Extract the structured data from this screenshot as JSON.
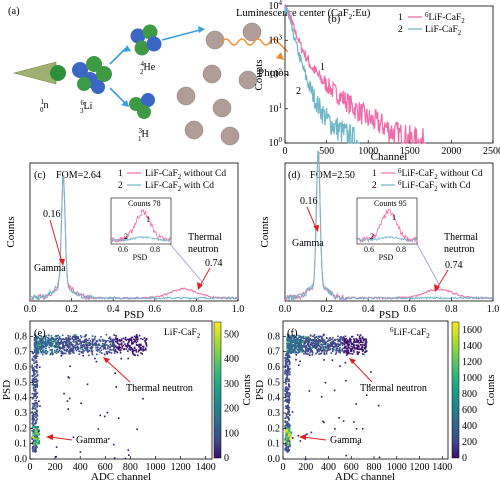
{
  "panels": {
    "a": {
      "label": "(a)",
      "luminescence_center": "Luminescence center (CaF",
      "luminescence_center_sub": "2",
      "luminescence_center_end": ":Eu)",
      "neutron_mass": "1",
      "neutron_charge": "0",
      "neutron_symbol": "n",
      "li_mass": "6",
      "li_charge": "3",
      "li_symbol": "Li",
      "he_mass": "4",
      "he_charge": "2",
      "he_symbol": "He",
      "h_mass": "3",
      "h_charge": "1",
      "h_symbol": "H",
      "photon": "Photon"
    },
    "b": {
      "label": "(b)",
      "ylabel": "Counts",
      "xlabel": "Channel",
      "xticks": [
        "0",
        "500",
        "1000",
        "1500",
        "2000",
        "2500"
      ],
      "legend": [
        {
          "num": "1",
          "text": "LiF-CaF",
          "pre": "6",
          "sub": "2",
          "color": "#f06ba8"
        },
        {
          "num": "2",
          "text": "LiF-CaF",
          "pre": "",
          "sub": "2",
          "color": "#6fb6c9"
        }
      ],
      "curve_labels": [
        "1",
        "2"
      ]
    },
    "c": {
      "label": "(c)",
      "fom": "FOM=2.64",
      "ylabel": "Counts",
      "xlabel": "PSD",
      "xticks": [
        "0.0",
        "0.2",
        "0.4",
        "0.6",
        "0.8",
        "1.0"
      ],
      "legend": [
        {
          "num": "1",
          "text": "LiF-CaF",
          "sub": "2",
          "tail": " without Cd",
          "color": "#f06ba8"
        },
        {
          "num": "2",
          "text": "LiF-CaF",
          "sub": "2",
          "tail": " with Cd",
          "color": "#6fb6c9"
        }
      ],
      "peak_gamma": "0.16",
      "gamma": "Gamma",
      "thermal_1": "Thermal",
      "thermal_2": "neutron",
      "peak_thermal": "0.74",
      "inset": {
        "title": "Counts 78",
        "xlabel": "PSD",
        "xticks": [
          "0.6",
          "0.8"
        ],
        "labels": [
          "1",
          "2"
        ]
      }
    },
    "d": {
      "label": "(d)",
      "fom": "FOM=2.50",
      "ylabel": "Counts",
      "xlabel": "PSD",
      "xticks": [
        "0.0",
        "0.2",
        "0.4",
        "0.6",
        "0.8",
        "1.0"
      ],
      "legend": [
        {
          "num": "1",
          "text": "LiF-CaF",
          "pre": "6",
          "sub": "2",
          "tail": " without Cd",
          "color": "#f06ba8"
        },
        {
          "num": "2",
          "text": "LiF-CaF",
          "pre": "6",
          "sub": "2",
          "tail": " with Cd",
          "color": "#6fb6c9"
        }
      ],
      "peak_gamma": "0.16",
      "gamma": "Gamma",
      "thermal_1": "Thermal",
      "thermal_2": "neutron",
      "peak_thermal": "0.74",
      "inset": {
        "title": "Counts 95",
        "xlabel": "PSD",
        "xticks": [
          "0.6",
          "0.8"
        ],
        "labels": [
          "1",
          "2"
        ]
      }
    },
    "e": {
      "label": "(e)",
      "material": "LiF-CaF",
      "material_sub": "2",
      "ylabel": "PSD",
      "xlabel": "ADC channel",
      "xticks": [
        "0",
        "200",
        "400",
        "600",
        "800",
        "1000",
        "1200",
        "1400"
      ],
      "yticks": [
        "0.0",
        "0.1",
        "0.2",
        "0.3",
        "0.4",
        "0.5",
        "0.6",
        "0.7",
        "0.8"
      ],
      "colorbar_label": "Counts",
      "colorbar_ticks": [
        "0",
        "100",
        "200",
        "300",
        "400",
        "500"
      ],
      "thermal": "Thermal neutron",
      "gamma": "Gamma"
    },
    "f": {
      "label": "(f)",
      "material": "LiF-CaF",
      "material_pre": "6",
      "material_sub": "2",
      "ylabel": "PSD",
      "xlabel": "ADC channel",
      "xticks": [
        "0",
        "200",
        "400",
        "600",
        "800",
        "1000",
        "1200",
        "1400"
      ],
      "yticks": [
        "0.0",
        "0.1",
        "0.2",
        "0.3",
        "0.4",
        "0.5",
        "0.6",
        "0.7",
        "0.8"
      ],
      "colorbar_label": "Counts",
      "colorbar_ticks": [
        "0",
        "200",
        "400",
        "600",
        "800",
        "1000",
        "1200",
        "1400",
        "1600"
      ],
      "thermal": "Thermal neutron",
      "gamma": "Gamma"
    }
  },
  "chart_data": [
    {
      "panel": "b",
      "type": "line",
      "log_y": true,
      "xlim": [
        0,
        2500
      ],
      "ylim": [
        1,
        10000
      ],
      "yticks": [
        1,
        10,
        100,
        1000,
        10000
      ],
      "series": [
        {
          "name": "LiF-CaF2 (6Li)",
          "x": [
            0,
            50,
            100,
            200,
            300,
            400,
            500,
            600,
            700,
            800,
            900,
            1000,
            1100,
            1200,
            1300,
            1400,
            1500,
            1600,
            1700
          ],
          "y": [
            9000,
            6000,
            2500,
            600,
            200,
            90,
            50,
            30,
            20,
            12,
            8,
            5,
            4,
            3,
            2,
            1.6,
            1.3,
            1.1,
            1
          ]
        },
        {
          "name": "LiF-CaF2",
          "x": [
            0,
            50,
            100,
            200,
            300,
            400,
            500,
            600,
            700,
            800,
            900
          ],
          "y": [
            9000,
            4500,
            1500,
            200,
            40,
            12,
            5,
            3,
            2,
            1.3,
            1
          ]
        }
      ]
    },
    {
      "panel": "c",
      "type": "line",
      "xlim": [
        0,
        1.0
      ],
      "ylim": [
        0,
        1100
      ],
      "yticks": [],
      "series": [
        {
          "name": "LiF-CaF2 without Cd",
          "peak": 0.16,
          "thermal": 0.74
        },
        {
          "name": "LiF-CaF2 with Cd",
          "peak": 0.16
        }
      ]
    },
    {
      "panel": "d",
      "type": "line",
      "xlim": [
        0,
        1.0
      ],
      "ylim": [
        0,
        1100
      ],
      "yticks": [],
      "series": [
        {
          "name": "6LiF-CaF2 without Cd",
          "peak": 0.16,
          "thermal": 0.74
        },
        {
          "name": "6LiF-CaF2 with Cd",
          "peak": 0.16
        }
      ]
    },
    {
      "panel": "e",
      "type": "heatmap",
      "xlim": [
        0,
        1450
      ],
      "ylim": [
        0,
        0.9
      ],
      "clim": [
        0,
        550
      ],
      "colormap": [
        "#3b0f70",
        "#3e4a89",
        "#31688e",
        "#26828e",
        "#1f9e89",
        "#35b779",
        "#6ece58",
        "#b5de2b",
        "#fde725"
      ],
      "clusters": [
        {
          "label": "Thermal neutron",
          "x": [
            30,
            900
          ],
          "y": [
            0.7,
            0.8
          ]
        },
        {
          "label": "Gamma",
          "x": [
            0,
            80
          ],
          "y": [
            0.05,
            0.25
          ]
        }
      ]
    },
    {
      "panel": "f",
      "type": "heatmap",
      "xlim": [
        0,
        1450
      ],
      "ylim": [
        0,
        0.9
      ],
      "clim": [
        0,
        1700
      ],
      "colormap": [
        "#3b0f70",
        "#3e4a89",
        "#31688e",
        "#26828e",
        "#1f9e89",
        "#35b779",
        "#6ece58",
        "#b5de2b",
        "#fde725"
      ],
      "clusters": [
        {
          "label": "Thermal neutron",
          "x": [
            30,
            700
          ],
          "y": [
            0.68,
            0.82
          ]
        },
        {
          "label": "Gamma",
          "x": [
            0,
            80
          ],
          "y": [
            0.05,
            0.25
          ]
        }
      ]
    }
  ]
}
